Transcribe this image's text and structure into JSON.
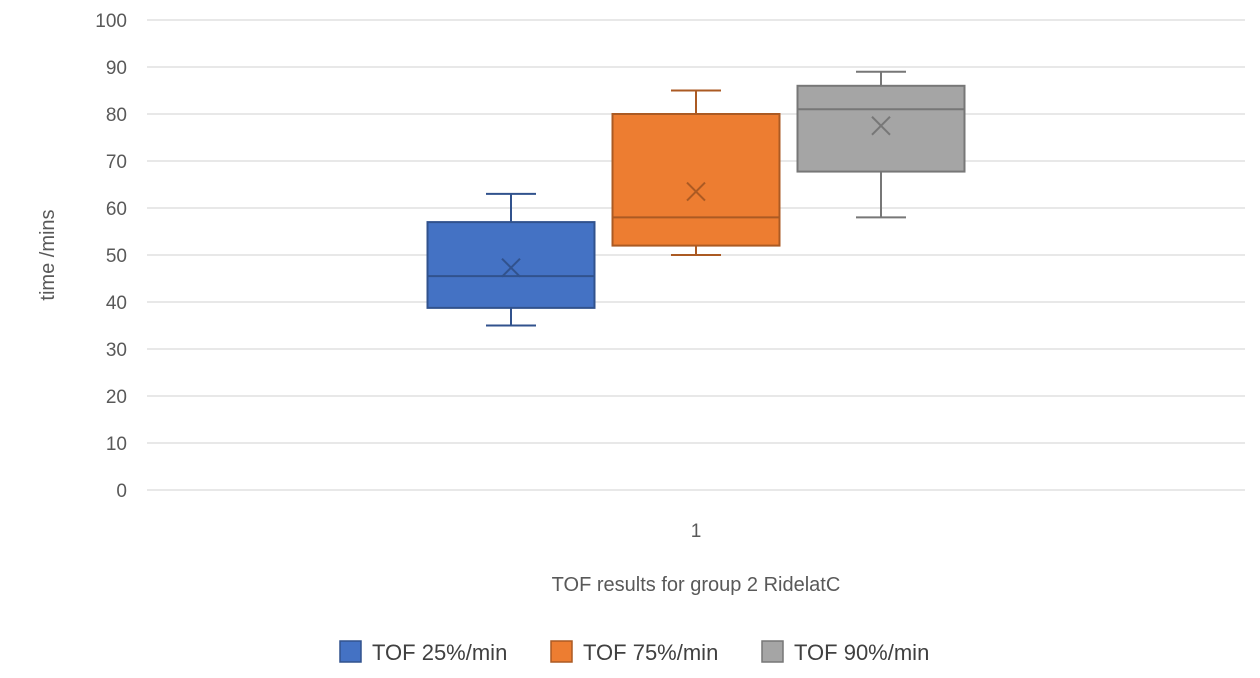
{
  "chart_data": {
    "type": "box",
    "title": "",
    "xlabel": "TOF results for group 2 RidelatC",
    "ylabel": "time /mins",
    "categories": [
      "1"
    ],
    "ylim": [
      0,
      100
    ],
    "y_ticks": [
      0,
      10,
      20,
      30,
      40,
      50,
      60,
      70,
      80,
      90,
      100
    ],
    "grid": "horizontal",
    "legend_position": "bottom",
    "series": [
      {
        "name": "TOF 25%/min",
        "color": "#4472C4",
        "min": 35,
        "q1": 38.75,
        "median": 45.5,
        "q3": 57,
        "max": 63,
        "mean": 47.3
      },
      {
        "name": "TOF 75%/min",
        "color": "#ED7D31",
        "min": 50,
        "q1": 52,
        "median": 58,
        "q3": 80,
        "max": 85,
        "mean": 63.5
      },
      {
        "name": "TOF 90%/min",
        "color": "#A5A5A5",
        "min": 58,
        "q1": 67.75,
        "median": 81,
        "q3": 86,
        "max": 89,
        "mean": 77.5
      }
    ]
  }
}
